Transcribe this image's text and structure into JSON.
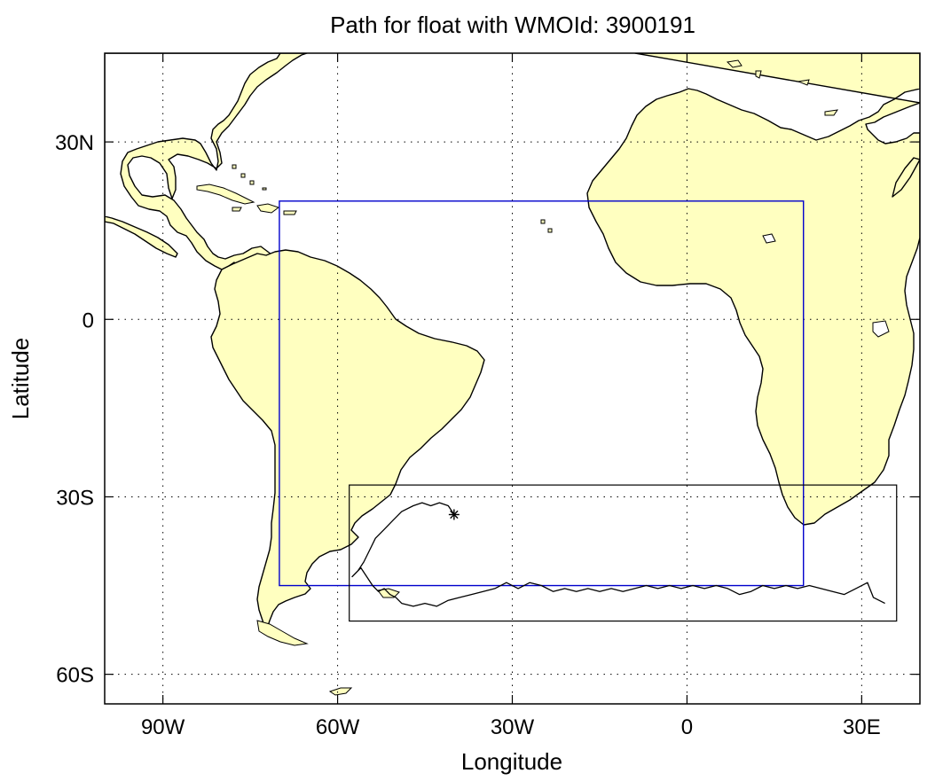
{
  "map": {
    "title": "Path for float with WMOId: 3900191",
    "xlabel": "Longitude",
    "ylabel": "Latitude",
    "x_ticks": [
      {
        "value": -90,
        "label": "90W"
      },
      {
        "value": -60,
        "label": "60W"
      },
      {
        "value": -30,
        "label": "30W"
      },
      {
        "value": 0,
        "label": "0"
      },
      {
        "value": 30,
        "label": "30E"
      }
    ],
    "y_ticks": [
      {
        "value": 30,
        "label": "30N"
      },
      {
        "value": 0,
        "label": "0"
      },
      {
        "value": -30,
        "label": "30S"
      },
      {
        "value": -60,
        "label": "60S"
      }
    ],
    "lon_range": [
      -100,
      40
    ],
    "lat_range": [
      -65,
      45
    ],
    "grid": true,
    "colors": {
      "land": "#ffffc0",
      "coast": "#000000",
      "region_box": "#0000cc",
      "zoom_box": "#000000",
      "float_path": "#000000"
    },
    "region_box": {
      "lon": [
        -70,
        20
      ],
      "lat": [
        -45,
        20
      ]
    },
    "zoom_box": {
      "lon": [
        -58,
        36
      ],
      "lat": [
        -51,
        -28
      ]
    },
    "float_start": {
      "lon": -40,
      "lat": -33,
      "marker": "asterisk"
    }
  },
  "chart_data": {
    "type": "map",
    "title": "Path for float with WMOId: 3900191",
    "xlabel": "Longitude",
    "ylabel": "Latitude",
    "xlim": [
      -100,
      40
    ],
    "ylim": [
      -65,
      45
    ],
    "series": [
      {
        "points": [
          [
            -40,
            -33
          ],
          [
            -41,
            -31.5
          ],
          [
            -42.5,
            -31
          ],
          [
            -44,
            -31.5
          ],
          [
            -45.5,
            -31
          ],
          [
            -47,
            -31.5
          ],
          [
            -49,
            -32.5
          ],
          [
            -50.5,
            -34
          ],
          [
            -52,
            -35.5
          ],
          [
            -53.5,
            -37
          ],
          [
            -54.5,
            -39
          ],
          [
            -55.5,
            -41
          ],
          [
            -56.5,
            -42.5
          ],
          [
            -57.5,
            -43.5
          ],
          [
            -56,
            -42
          ],
          [
            -55,
            -43.5
          ],
          [
            -54,
            -45
          ],
          [
            -53,
            -46
          ],
          [
            -52,
            -45.5
          ],
          [
            -51,
            -46.5
          ],
          [
            -50,
            -47
          ],
          [
            -49,
            -48
          ],
          [
            -47,
            -48.5
          ],
          [
            -45,
            -48
          ],
          [
            -43,
            -48.5
          ],
          [
            -41,
            -47.5
          ],
          [
            -39,
            -47
          ],
          [
            -37,
            -46.5
          ],
          [
            -35,
            -46
          ],
          [
            -33,
            -45.5
          ],
          [
            -31,
            -44.5
          ],
          [
            -29,
            -45.5
          ],
          [
            -27,
            -44.5
          ],
          [
            -25,
            -45
          ],
          [
            -23,
            -46
          ],
          [
            -21,
            -45.5
          ],
          [
            -19,
            -46
          ],
          [
            -17,
            -45.5
          ],
          [
            -15,
            -46
          ],
          [
            -13,
            -45.5
          ],
          [
            -11,
            -46
          ],
          [
            -9,
            -45.5
          ],
          [
            -7,
            -45
          ],
          [
            -5,
            -45.5
          ],
          [
            -3,
            -45
          ],
          [
            -1,
            -45.5
          ],
          [
            1,
            -45
          ],
          [
            3,
            -45.5
          ],
          [
            5,
            -45
          ],
          [
            7,
            -45.5
          ],
          [
            9,
            -46.5
          ],
          [
            11,
            -46
          ],
          [
            13,
            -45
          ],
          [
            15,
            -45.5
          ],
          [
            17,
            -45
          ],
          [
            19,
            -45.5
          ],
          [
            21,
            -45
          ],
          [
            23,
            -45.5
          ],
          [
            25,
            -46
          ],
          [
            27,
            -46.5
          ],
          [
            29,
            -45.5
          ],
          [
            31,
            -44.5
          ],
          [
            32,
            -47
          ],
          [
            34,
            -48
          ]
        ]
      }
    ]
  }
}
